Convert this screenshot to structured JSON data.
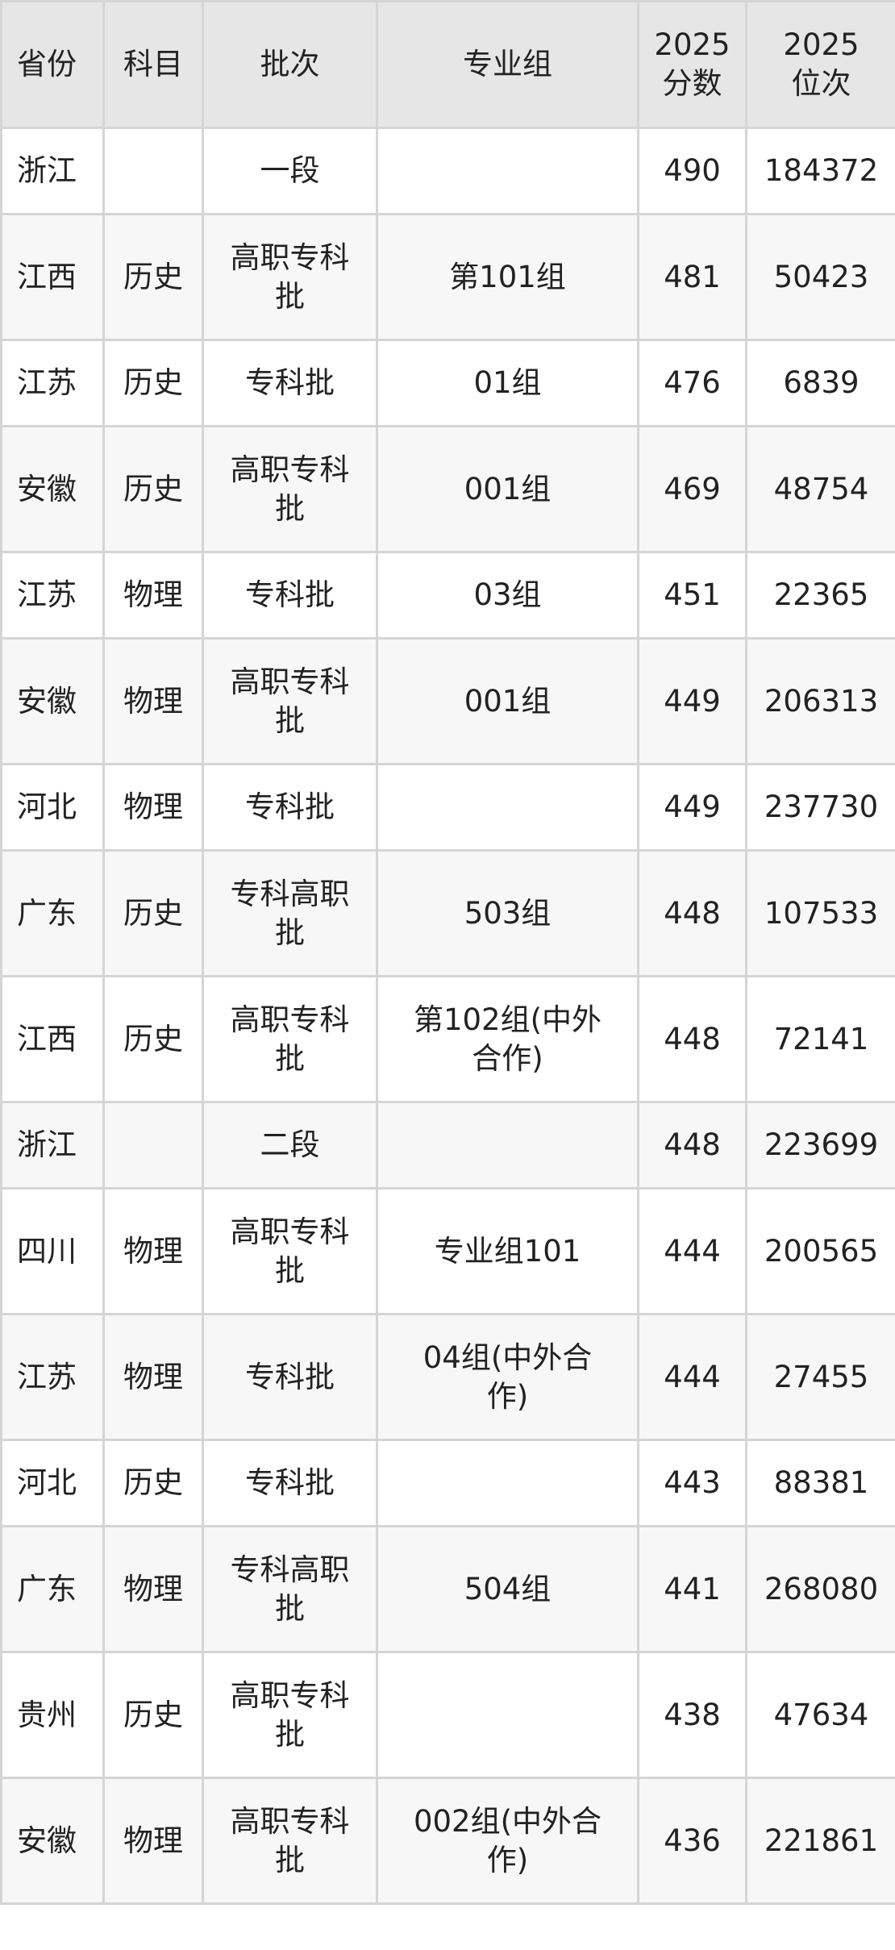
{
  "table": {
    "headers": [
      "省份",
      "科目",
      "批次",
      "专业组",
      "2025分数",
      "2025位次"
    ],
    "rows": [
      {
        "province": "浙江",
        "subject": "",
        "batch": "一段",
        "group": "",
        "score": "490",
        "rank": "184372"
      },
      {
        "province": "江西",
        "subject": "历史",
        "batch": "高职专科批",
        "group": "第101组",
        "score": "481",
        "rank": "50423"
      },
      {
        "province": "江苏",
        "subject": "历史",
        "batch": "专科批",
        "group": "01组",
        "score": "476",
        "rank": "6839"
      },
      {
        "province": "安徽",
        "subject": "历史",
        "batch": "高职专科批",
        "group": "001组",
        "score": "469",
        "rank": "48754"
      },
      {
        "province": "江苏",
        "subject": "物理",
        "batch": "专科批",
        "group": "03组",
        "score": "451",
        "rank": "22365"
      },
      {
        "province": "安徽",
        "subject": "物理",
        "batch": "高职专科批",
        "group": "001组",
        "score": "449",
        "rank": "206313"
      },
      {
        "province": "河北",
        "subject": "物理",
        "batch": "专科批",
        "group": "",
        "score": "449",
        "rank": "237730"
      },
      {
        "province": "广东",
        "subject": "历史",
        "batch": "专科高职批",
        "group": "503组",
        "score": "448",
        "rank": "107533"
      },
      {
        "province": "江西",
        "subject": "历史",
        "batch": "高职专科批",
        "group": "第102组(中外合作)",
        "score": "448",
        "rank": "72141"
      },
      {
        "province": "浙江",
        "subject": "",
        "batch": "二段",
        "group": "",
        "score": "448",
        "rank": "223699"
      },
      {
        "province": "四川",
        "subject": "物理",
        "batch": "高职专科批",
        "group": "专业组101",
        "score": "444",
        "rank": "200565"
      },
      {
        "province": "江苏",
        "subject": "物理",
        "batch": "专科批",
        "group": "04组(中外合作)",
        "score": "444",
        "rank": "27455"
      },
      {
        "province": "河北",
        "subject": "历史",
        "batch": "专科批",
        "group": "",
        "score": "443",
        "rank": "88381"
      },
      {
        "province": "广东",
        "subject": "物理",
        "batch": "专科高职批",
        "group": "504组",
        "score": "441",
        "rank": "268080"
      },
      {
        "province": "贵州",
        "subject": "历史",
        "batch": "高职专科批",
        "group": "",
        "score": "438",
        "rank": "47634"
      },
      {
        "province": "安徽",
        "subject": "物理",
        "batch": "高职专科批",
        "group": "002组(中外合作)",
        "score": "436",
        "rank": "221861"
      }
    ]
  }
}
